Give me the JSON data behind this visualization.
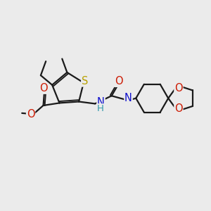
{
  "bg_color": "#ebebeb",
  "bond_color": "#1a1a1a",
  "bw": 1.6,
  "atom_colors": {
    "S": "#b8a000",
    "N": "#1010cc",
    "O": "#cc1800",
    "H": "#3399aa",
    "C": "#1a1a1a"
  },
  "fs": 10.5,
  "fs_s": 9.0
}
